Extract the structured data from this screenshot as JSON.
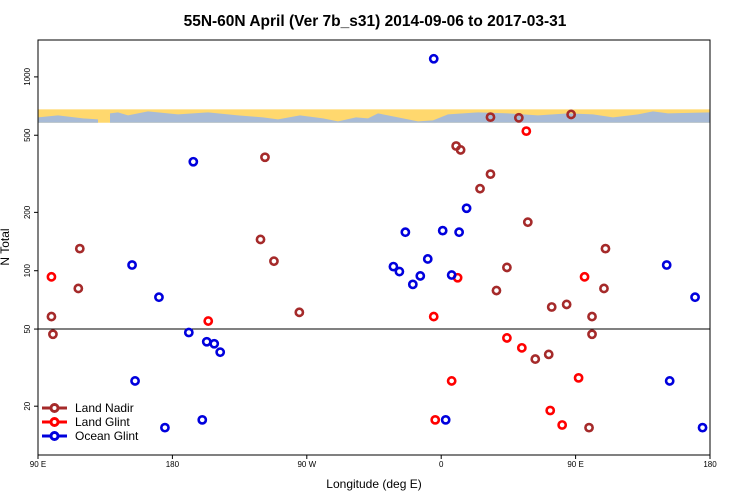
{
  "chart_data": {
    "type": "scatter",
    "title": "55N-60N April (Ver 7b_s31)   2014-09-06 to 2017-03-31",
    "xlabel": "Longitude (deg E)",
    "ylabel": "N Total",
    "x_scale": "linear",
    "y_scale": "log",
    "xlim": [
      90,
      540
    ],
    "ylim": [
      11.2,
      1550
    ],
    "x_ticks": [
      {
        "value": 90,
        "label": "90 E"
      },
      {
        "value": 180,
        "label": "180"
      },
      {
        "value": 270,
        "label": "90 W"
      },
      {
        "value": 360,
        "label": "0"
      },
      {
        "value": 450,
        "label": "90 E"
      },
      {
        "value": 540,
        "label": "180"
      }
    ],
    "y_ticks": [
      {
        "value": 20,
        "label": "20"
      },
      {
        "value": 50,
        "label": "50"
      },
      {
        "value": 100,
        "label": "100"
      },
      {
        "value": 200,
        "label": "200"
      },
      {
        "value": 500,
        "label": "500"
      },
      {
        "value": 1000,
        "label": "1000"
      }
    ],
    "reference_line": 50,
    "map_strip": {
      "y_low": 580,
      "y_high": 680,
      "land_color": "#a8bbd6",
      "ocean_color": "#ffd86e"
    },
    "legend_position": "bottom-left",
    "series": [
      {
        "name": "Land Nadir",
        "color": "#a52a2a",
        "points": [
          {
            "x": 99,
            "y": 58
          },
          {
            "x": 100,
            "y": 47
          },
          {
            "x": 117,
            "y": 81
          },
          {
            "x": 118,
            "y": 130
          },
          {
            "x": 239,
            "y": 145
          },
          {
            "x": 242,
            "y": 385
          },
          {
            "x": 248,
            "y": 112
          },
          {
            "x": 265,
            "y": 61
          },
          {
            "x": 370,
            "y": 440
          },
          {
            "x": 373,
            "y": 420
          },
          {
            "x": 386,
            "y": 265
          },
          {
            "x": 393,
            "y": 315
          },
          {
            "x": 397,
            "y": 79
          },
          {
            "x": 404,
            "y": 104
          },
          {
            "x": 418,
            "y": 178
          },
          {
            "x": 423,
            "y": 35
          },
          {
            "x": 432,
            "y": 37
          },
          {
            "x": 434,
            "y": 65
          },
          {
            "x": 444,
            "y": 67
          },
          {
            "x": 459,
            "y": 15.5
          },
          {
            "x": 393,
            "y": 620
          },
          {
            "x": 412,
            "y": 615
          },
          {
            "x": 447,
            "y": 640
          },
          {
            "x": 461,
            "y": 47
          },
          {
            "x": 461,
            "y": 58
          },
          {
            "x": 469,
            "y": 81
          },
          {
            "x": 470,
            "y": 130
          }
        ]
      },
      {
        "name": "Land Glint",
        "color": "#ff0000",
        "points": [
          {
            "x": 99,
            "y": 93
          },
          {
            "x": 204,
            "y": 55
          },
          {
            "x": 355,
            "y": 58
          },
          {
            "x": 356,
            "y": 17
          },
          {
            "x": 367,
            "y": 27
          },
          {
            "x": 371,
            "y": 92
          },
          {
            "x": 404,
            "y": 45
          },
          {
            "x": 414,
            "y": 40
          },
          {
            "x": 417,
            "y": 525
          },
          {
            "x": 433,
            "y": 19
          },
          {
            "x": 441,
            "y": 16
          },
          {
            "x": 452,
            "y": 28
          },
          {
            "x": 456,
            "y": 93
          }
        ]
      },
      {
        "name": "Ocean Glint",
        "color": "#0000dd",
        "points": [
          {
            "x": 153,
            "y": 107
          },
          {
            "x": 155,
            "y": 27
          },
          {
            "x": 171,
            "y": 73
          },
          {
            "x": 175,
            "y": 15.5
          },
          {
            "x": 191,
            "y": 48
          },
          {
            "x": 194,
            "y": 365
          },
          {
            "x": 200,
            "y": 17
          },
          {
            "x": 203,
            "y": 43
          },
          {
            "x": 208,
            "y": 42
          },
          {
            "x": 212,
            "y": 38
          },
          {
            "x": 328,
            "y": 105
          },
          {
            "x": 332,
            "y": 99
          },
          {
            "x": 336,
            "y": 158
          },
          {
            "x": 341,
            "y": 85
          },
          {
            "x": 346,
            "y": 94
          },
          {
            "x": 351,
            "y": 115
          },
          {
            "x": 355,
            "y": 1240
          },
          {
            "x": 361,
            "y": 161
          },
          {
            "x": 367,
            "y": 95
          },
          {
            "x": 372,
            "y": 158
          },
          {
            "x": 377,
            "y": 210
          },
          {
            "x": 511,
            "y": 107
          },
          {
            "x": 513,
            "y": 27
          },
          {
            "x": 530,
            "y": 73
          },
          {
            "x": 535,
            "y": 15.5
          },
          {
            "x": 363,
            "y": 17
          }
        ]
      }
    ]
  }
}
